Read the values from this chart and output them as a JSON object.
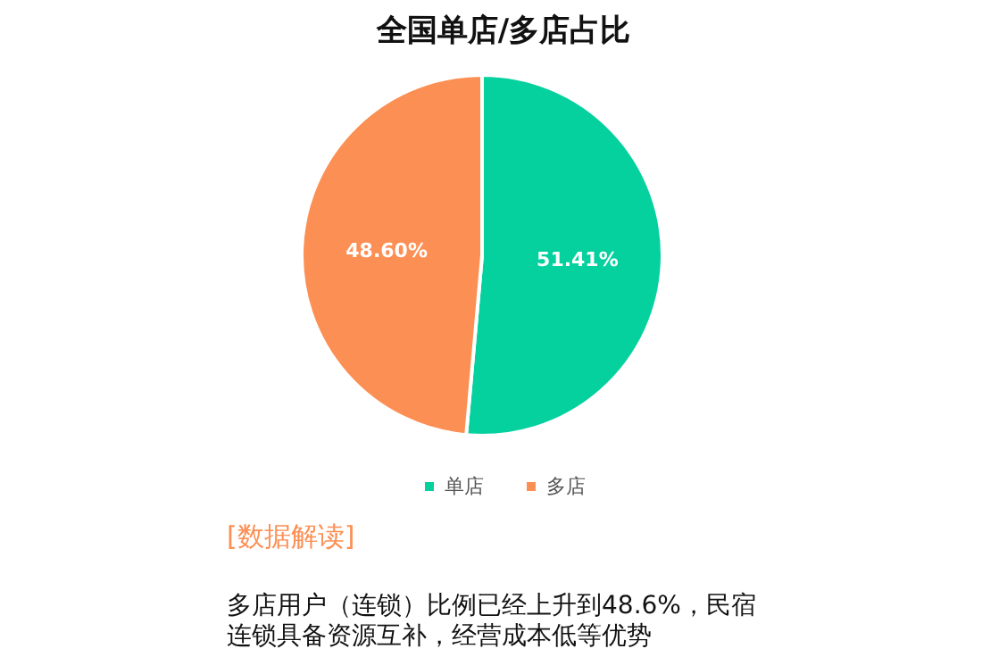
{
  "chart_data": {
    "type": "pie",
    "title": "全国单店/多店占比",
    "categories": [
      "单店",
      "多店"
    ],
    "values": [
      51.41,
      48.6
    ],
    "colors": [
      "#05d19e",
      "#fc8f54"
    ],
    "value_labels": [
      "51.41%",
      "48.60%"
    ],
    "legend": "bottom",
    "annotations": [
      "[数据解读]",
      "多店用户（连锁）比例已经上升到48.6%，民宿",
      "连锁具备资源互补，经营成本低等优势"
    ]
  }
}
